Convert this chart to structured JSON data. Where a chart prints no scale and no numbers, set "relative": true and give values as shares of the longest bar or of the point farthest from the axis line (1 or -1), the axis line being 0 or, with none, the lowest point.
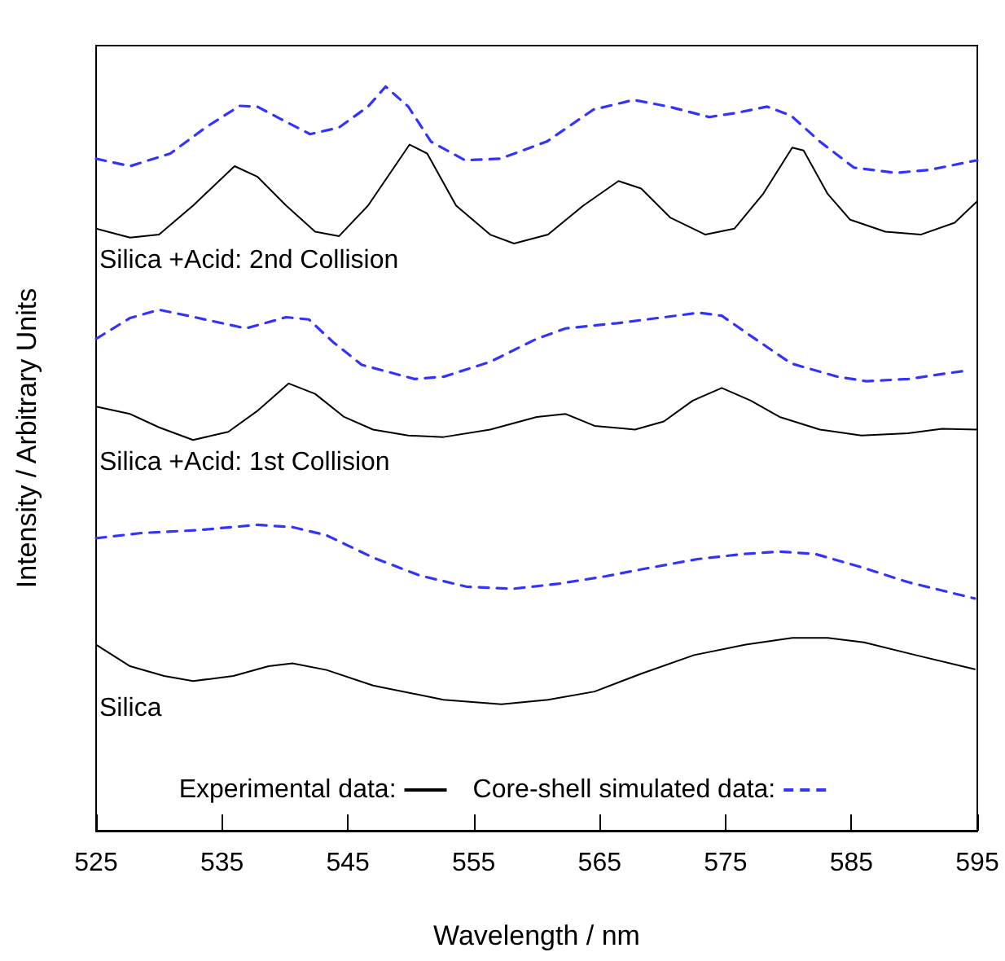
{
  "chart_data": {
    "type": "line",
    "relative": true,
    "xlabel": "Wavelength / nm",
    "ylabel": "Intensity / Arbitrary Units",
    "xlim": [
      525,
      595
    ],
    "xticks": [
      525,
      535,
      545,
      555,
      565,
      575,
      585,
      595
    ],
    "grid": false,
    "legend": "bottom",
    "marker": "none",
    "annotations": [
      "Silica +Acid: 2nd Collision",
      "Silica +Acid: 1st Collision",
      "Silica"
    ],
    "series": [
      {
        "color": "#3333ff",
        "line_style": "dashed",
        "x": [
          525,
          527.7,
          530.9,
          533.7,
          536.4,
          537.8,
          539.6,
          542.0,
          544.3,
          546.6,
          548.0,
          549.8,
          551.6,
          554.3,
          557.1,
          560.8,
          564.5,
          567.7,
          570.5,
          573.7,
          576.0,
          578.3,
          580.2,
          582.5,
          585.2,
          588.5,
          591.2,
          595
        ],
        "values": [
          0.903,
          0.893,
          0.91,
          0.945,
          0.974,
          0.973,
          0.957,
          0.936,
          0.945,
          0.973,
          1.0,
          0.973,
          0.926,
          0.901,
          0.903,
          0.926,
          0.969,
          0.982,
          0.973,
          0.959,
          0.965,
          0.973,
          0.961,
          0.926,
          0.891,
          0.884,
          0.888,
          0.901
        ]
      },
      {
        "color": "#000000",
        "line_style": "solid",
        "x": [
          525,
          527.7,
          530.0,
          532.7,
          536.0,
          537.8,
          540.1,
          542.4,
          544.3,
          546.6,
          549.9,
          551.3,
          553.6,
          556.3,
          558.2,
          560.9,
          563.7,
          566.5,
          568.3,
          570.6,
          573.4,
          575.7,
          578.0,
          580.3,
          581.2,
          583.1,
          584.9,
          587.7,
          590.5,
          593.2,
          595
        ],
        "values": [
          0.809,
          0.797,
          0.801,
          0.84,
          0.893,
          0.879,
          0.84,
          0.805,
          0.799,
          0.84,
          0.922,
          0.91,
          0.84,
          0.801,
          0.789,
          0.801,
          0.84,
          0.873,
          0.863,
          0.824,
          0.801,
          0.809,
          0.856,
          0.918,
          0.914,
          0.856,
          0.821,
          0.805,
          0.801,
          0.817,
          0.846
        ]
      },
      {
        "color": "#3333ff",
        "line_style": "dashed",
        "x": [
          525,
          527.7,
          530.0,
          532.3,
          536.9,
          540.1,
          541.9,
          543.8,
          546.1,
          550.3,
          552.6,
          556.3,
          560.0,
          562.3,
          566.4,
          570.1,
          572.9,
          574.7,
          577.0,
          580.2,
          583.9,
          586.2,
          589.5,
          594.0
        ],
        "values": [
          0.661,
          0.689,
          0.7,
          0.692,
          0.675,
          0.69,
          0.687,
          0.657,
          0.626,
          0.607,
          0.61,
          0.63,
          0.661,
          0.675,
          0.682,
          0.69,
          0.696,
          0.692,
          0.665,
          0.628,
          0.61,
          0.604,
          0.607,
          0.618
        ]
      },
      {
        "color": "#000000",
        "line_style": "solid",
        "x": [
          525,
          527.7,
          530.0,
          532.7,
          535.5,
          537.8,
          540.3,
          542.4,
          544.7,
          547.0,
          549.8,
          552.6,
          556.3,
          560.0,
          562.3,
          564.6,
          567.8,
          570.1,
          572.4,
          574.7,
          577.0,
          579.3,
          582.5,
          585.8,
          589.5,
          592.2,
          595
        ],
        "values": [
          0.57,
          0.56,
          0.542,
          0.525,
          0.536,
          0.564,
          0.601,
          0.587,
          0.556,
          0.539,
          0.531,
          0.529,
          0.539,
          0.556,
          0.56,
          0.544,
          0.539,
          0.55,
          0.578,
          0.595,
          0.578,
          0.556,
          0.539,
          0.531,
          0.534,
          0.54,
          0.539
        ]
      },
      {
        "color": "#000000",
        "line_style": "solid",
        "name": "Experimental data:",
        "x": [
          525,
          527.7,
          530.4,
          532.7,
          535.9,
          538.7,
          540.6,
          543.3,
          547.0,
          552.6,
          557.2,
          560.9,
          564.6,
          568.3,
          572.5,
          576.6,
          580.3,
          583.1,
          586.0,
          590.1,
          594.8
        ],
        "values": [
          0.25,
          0.221,
          0.208,
          0.201,
          0.208,
          0.221,
          0.225,
          0.216,
          0.195,
          0.176,
          0.17,
          0.176,
          0.187,
          0.211,
          0.236,
          0.25,
          0.259,
          0.259,
          0.253,
          0.236,
          0.217
        ]
      },
      {
        "color": "#3333ff",
        "line_style": "dashed",
        "name": "Core-shell simulated data:",
        "x": [
          525,
          528.6,
          533.2,
          537.8,
          540.6,
          543.3,
          547.0,
          550.7,
          554.4,
          558.1,
          561.8,
          565.5,
          569.2,
          572.8,
          576.5,
          579.3,
          582.1,
          585.8,
          589.5,
          594.8
        ],
        "values": [
          0.393,
          0.4,
          0.404,
          0.411,
          0.408,
          0.397,
          0.367,
          0.343,
          0.328,
          0.325,
          0.332,
          0.342,
          0.354,
          0.365,
          0.372,
          0.375,
          0.372,
          0.354,
          0.334,
          0.312
        ]
      }
    ]
  }
}
